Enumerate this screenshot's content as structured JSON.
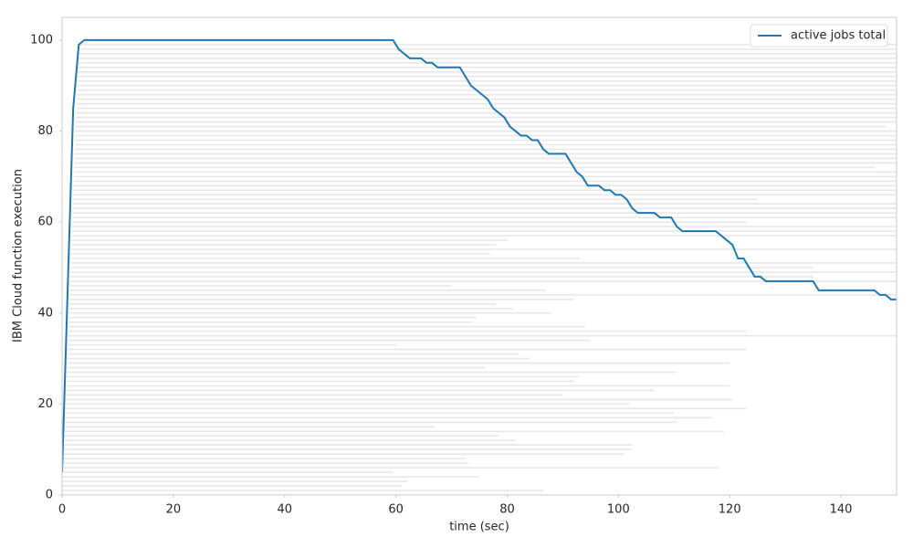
{
  "chart_data": {
    "type": "line",
    "xlabel": "time (sec)",
    "ylabel": "IBM Cloud function execution",
    "xlim": [
      0,
      150
    ],
    "ylim": [
      0,
      105
    ],
    "xticks": [
      0,
      20,
      40,
      60,
      80,
      100,
      120,
      140
    ],
    "yticks": [
      0,
      20,
      40,
      60,
      80,
      100
    ],
    "legend": "upper right",
    "grid": false,
    "x": [
      0,
      1,
      2,
      3,
      4,
      59.5,
      60.5,
      62.5,
      64.5,
      65.5,
      66.5,
      67.5,
      71.5,
      73.5,
      76.5,
      77.5,
      79.5,
      80.5,
      82.5,
      83.5,
      84.5,
      85.5,
      86.5,
      87.5,
      90.5,
      92.5,
      93.5,
      94.5,
      96.5,
      97.5,
      98.5,
      99.5,
      100.5,
      101.5,
      102.5,
      103.5,
      106.5,
      107.5,
      109.5,
      110.5,
      111.5,
      117.5,
      120.5,
      121.5,
      122.5,
      124.5,
      125.5,
      126.5,
      135,
      136,
      146,
      147,
      148,
      149,
      150
    ],
    "series": [
      {
        "name": "active jobs total",
        "color": "#1f77b4",
        "values": [
          5,
          45,
          85,
          99,
          100,
          100,
          98,
          96,
          96,
          95,
          95,
          94,
          94,
          90,
          87,
          85,
          83,
          81,
          79,
          79,
          78,
          78,
          76,
          75,
          75,
          71,
          70,
          68,
          68,
          67,
          67,
          66,
          66,
          65,
          63,
          62,
          62,
          61,
          61,
          59,
          58,
          58,
          55,
          52,
          52,
          48,
          48,
          47,
          47,
          45,
          45,
          44,
          44,
          43,
          43
        ]
      }
    ],
    "jobs": {
      "color": "#e8e8e8",
      "start": [
        0,
        0.03,
        0.06,
        0.09,
        0.12,
        0.15,
        0.18,
        0.21,
        0.24,
        0.27,
        0.3,
        0.33,
        0.36,
        0.39,
        0.42,
        0.45,
        0.48,
        0.51,
        0.54,
        0.57,
        0.6,
        0.63,
        0.66,
        0.69,
        0.72,
        0.75,
        0.78,
        0.81,
        0.84,
        0.87,
        0.9,
        0.93,
        0.96,
        0.99,
        1.02,
        1.05,
        1.08,
        1.11,
        1.14,
        1.17,
        1.2,
        1.23,
        1.26,
        1.29,
        1.32,
        1.35,
        1.38,
        1.41,
        1.44,
        1.47,
        1.5,
        1.53,
        1.56,
        1.59,
        1.62,
        1.65,
        1.68,
        1.71,
        1.74,
        1.77,
        1.8,
        1.83,
        1.86,
        1.89,
        1.92,
        1.95,
        1.98,
        2.01,
        2.04,
        2.07,
        2.1,
        2.13,
        2.16,
        2.19,
        2.22,
        2.25,
        2.28,
        2.31,
        2.34,
        2.37,
        2.4,
        2.43,
        2.46,
        2.49,
        2.52,
        2.55,
        2.58,
        2.61,
        2.64,
        2.67,
        2.7,
        2.73,
        2.76,
        2.79,
        2.82,
        2.85,
        2.88,
        2.91,
        2.94,
        2.97
      ],
      "end": [
        86.5,
        86.5,
        61,
        62,
        75,
        59.5,
        118,
        73,
        72.5,
        101,
        102.5,
        102.5,
        81.5,
        78.5,
        119,
        67,
        110.5,
        117,
        110,
        123,
        102,
        120.5,
        90,
        106.5,
        120,
        92,
        93,
        110.5,
        76,
        120,
        84,
        82,
        123,
        60,
        95,
        150,
        123,
        94,
        74,
        74.5,
        88,
        81,
        78,
        92,
        150,
        87,
        70,
        150,
        135,
        150,
        135,
        150,
        93,
        77,
        150,
        78,
        80,
        150,
        150,
        150,
        123,
        150,
        150,
        150,
        150,
        125,
        150,
        150,
        150,
        150,
        150,
        150,
        146,
        150,
        150,
        150,
        150,
        150,
        150,
        150,
        150,
        148,
        150,
        150,
        150,
        150,
        150,
        150,
        150,
        150,
        150,
        150,
        150,
        150,
        150,
        150,
        150,
        150,
        150,
        150
      ]
    }
  }
}
